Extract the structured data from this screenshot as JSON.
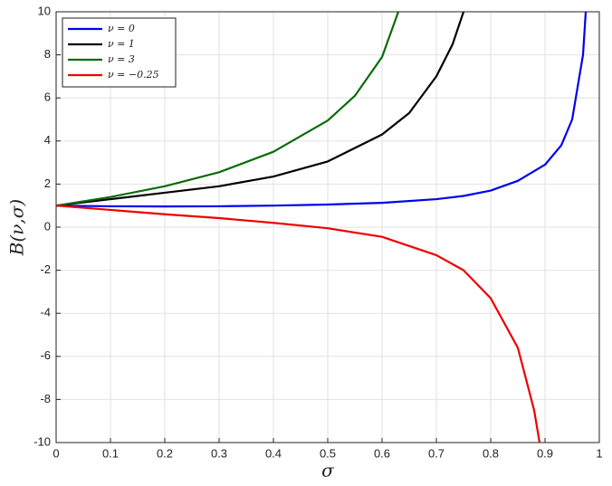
{
  "chart_data": {
    "type": "line",
    "xlabel": "σ",
    "ylabel": "B(ν,σ)",
    "xlim": [
      0,
      1
    ],
    "ylim": [
      -10,
      10
    ],
    "xticks": [
      0,
      0.1,
      0.2,
      0.3,
      0.4,
      0.5,
      0.6,
      0.7,
      0.8,
      0.9,
      1
    ],
    "yticks": [
      -10,
      -8,
      -6,
      -4,
      -2,
      0,
      2,
      4,
      6,
      8,
      10
    ],
    "grid": true,
    "legend": "upper-left",
    "series": [
      {
        "name": "ν = 0",
        "color": "#0000ee",
        "x": [
          0,
          0.1,
          0.2,
          0.3,
          0.4,
          0.5,
          0.6,
          0.7,
          0.75,
          0.8,
          0.85,
          0.9,
          0.93,
          0.95,
          0.97,
          0.975
        ],
        "values": [
          1,
          0.97,
          0.96,
          0.97,
          1.0,
          1.05,
          1.13,
          1.3,
          1.45,
          1.7,
          2.15,
          2.9,
          3.8,
          5.0,
          8.0,
          10
        ]
      },
      {
        "name": "ν = 1",
        "color": "#000000",
        "x": [
          0,
          0.1,
          0.2,
          0.3,
          0.4,
          0.5,
          0.6,
          0.65,
          0.7,
          0.73,
          0.75
        ],
        "values": [
          1,
          1.3,
          1.6,
          1.9,
          2.35,
          3.05,
          4.3,
          5.3,
          7.0,
          8.5,
          10
        ]
      },
      {
        "name": "ν = 3",
        "color": "#0a6b0a",
        "x": [
          0,
          0.1,
          0.2,
          0.3,
          0.4,
          0.5,
          0.55,
          0.6,
          0.63
        ],
        "values": [
          1,
          1.4,
          1.9,
          2.55,
          3.5,
          4.95,
          6.1,
          7.9,
          10
        ]
      },
      {
        "name": "ν = −0.25",
        "color": "#ee0000",
        "x": [
          0,
          0.1,
          0.2,
          0.3,
          0.4,
          0.5,
          0.6,
          0.7,
          0.75,
          0.8,
          0.85,
          0.88,
          0.89
        ],
        "values": [
          1,
          0.8,
          0.6,
          0.42,
          0.2,
          -0.05,
          -0.45,
          -1.3,
          -2.0,
          -3.3,
          -5.6,
          -8.5,
          -10
        ]
      }
    ]
  }
}
